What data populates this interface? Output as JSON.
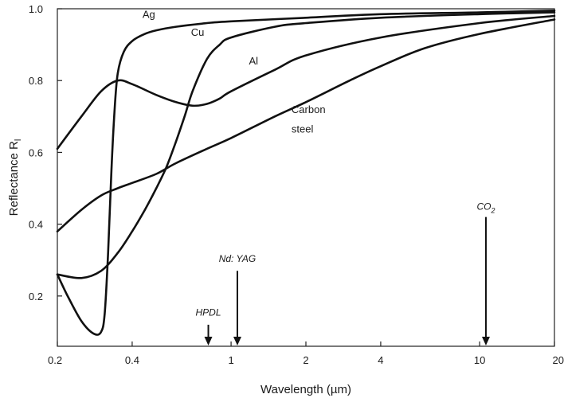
{
  "chart_data": {
    "type": "line",
    "xlabel": "Wavelength (µm)",
    "ylabel": "Reflectance R",
    "ylabel_sub": "l",
    "x_scale": "log",
    "xlim": [
      0.2,
      20
    ],
    "ylim": [
      0.06,
      1.0
    ],
    "x_ticks": [
      0.2,
      0.4,
      1,
      2,
      4,
      10,
      20
    ],
    "x_tick_labels": [
      "0.2",
      "0.4",
      "1",
      "2",
      "4",
      "10",
      "20"
    ],
    "y_ticks": [
      0.2,
      0.4,
      0.6,
      0.8,
      1.0
    ],
    "y_tick_labels": [
      "0.2",
      "0.4",
      "0.6",
      "0.8",
      "1.0"
    ],
    "series": [
      {
        "name": "Ag",
        "x": [
          0.2,
          0.22,
          0.25,
          0.28,
          0.3,
          0.31,
          0.32,
          0.33,
          0.34,
          0.35,
          0.37,
          0.4,
          0.45,
          0.5,
          0.6,
          0.8,
          1,
          2,
          4,
          10,
          20
        ],
        "y": [
          0.26,
          0.2,
          0.13,
          0.095,
          0.1,
          0.15,
          0.32,
          0.55,
          0.72,
          0.82,
          0.88,
          0.91,
          0.93,
          0.94,
          0.95,
          0.96,
          0.965,
          0.975,
          0.985,
          0.99,
          0.995
        ]
      },
      {
        "name": "Cu",
        "x": [
          0.2,
          0.25,
          0.3,
          0.35,
          0.4,
          0.45,
          0.5,
          0.55,
          0.6,
          0.65,
          0.7,
          0.8,
          0.9,
          1,
          1.5,
          2,
          4,
          10,
          20
        ],
        "y": [
          0.26,
          0.25,
          0.27,
          0.32,
          0.38,
          0.44,
          0.5,
          0.56,
          0.63,
          0.7,
          0.77,
          0.86,
          0.9,
          0.92,
          0.95,
          0.96,
          0.975,
          0.985,
          0.99
        ]
      },
      {
        "name": "Al",
        "x": [
          0.2,
          0.25,
          0.3,
          0.35,
          0.4,
          0.5,
          0.6,
          0.7,
          0.8,
          0.9,
          1,
          1.5,
          2,
          4,
          10,
          20
        ],
        "y": [
          0.61,
          0.7,
          0.77,
          0.8,
          0.79,
          0.76,
          0.74,
          0.73,
          0.735,
          0.75,
          0.77,
          0.83,
          0.87,
          0.92,
          0.96,
          0.98
        ]
      },
      {
        "name": "Carbon steel",
        "x": [
          0.2,
          0.25,
          0.3,
          0.35,
          0.4,
          0.5,
          0.6,
          0.8,
          1,
          1.5,
          2,
          3,
          4,
          6,
          10,
          20
        ],
        "y": [
          0.38,
          0.44,
          0.48,
          0.5,
          0.515,
          0.54,
          0.57,
          0.61,
          0.64,
          0.7,
          0.74,
          0.8,
          0.84,
          0.89,
          0.93,
          0.97
        ]
      }
    ],
    "series_labels": [
      {
        "text": "Ag",
        "x": 0.44,
        "y": 0.975
      },
      {
        "text": "Cu",
        "x": 0.69,
        "y": 0.925
      },
      {
        "text": "Al",
        "x": 1.18,
        "y": 0.845
      },
      {
        "text": "Carbon",
        "x": 1.75,
        "y": 0.71
      },
      {
        "text": "steel",
        "x": 1.75,
        "y": 0.655
      }
    ],
    "annotations": [
      {
        "text": "HPDL",
        "x": 0.81,
        "y_top": 0.12,
        "label_y": 0.145
      },
      {
        "text": "Nd: YAG",
        "x": 1.06,
        "y_top": 0.27,
        "label_y": 0.295
      },
      {
        "text": "CO",
        "sub": "2",
        "x": 10.6,
        "y_top": 0.42,
        "label_y": 0.44
      }
    ]
  }
}
